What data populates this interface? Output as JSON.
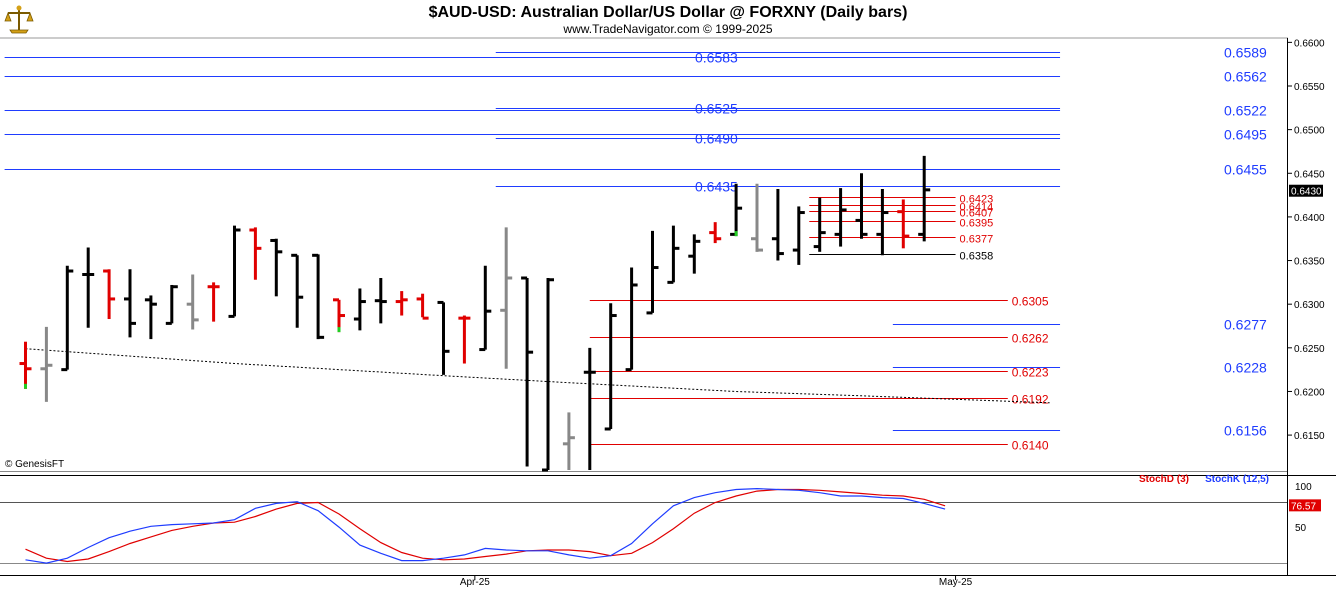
{
  "header": {
    "title": "$AUD-USD:  Australian Dollar/US Dollar @ FORXNY  (Daily bars)",
    "subtitle": "www.TradeNavigator.com © 1999-2025"
  },
  "credit": "© GenesisFT",
  "logo_icon": "scale-icon",
  "colors": {
    "bar_normal": "#000000",
    "bar_down": "#e00000",
    "bar_gray": "#888888",
    "level_blue": "#1f3cff",
    "level_red": "#e00000",
    "stoch_d": "#e00000",
    "stoch_k": "#1f3cff",
    "price_box": "#000000",
    "stoch_box": "#e00000"
  },
  "chart_data": [
    {
      "type": "ohlc",
      "title": "$AUD-USD:  Australian Dollar/US Dollar @ FORXNY  (Daily bars)",
      "ylim": [
        0.611,
        0.6605
      ],
      "y_ticks": [
        "0.6600",
        "0.6550",
        "0.6500",
        "0.6450",
        "0.6400",
        "0.6350",
        "0.6300",
        "0.6250",
        "0.6200",
        "0.6150"
      ],
      "y_tick_values": [
        0.66,
        0.655,
        0.65,
        0.645,
        0.64,
        0.635,
        0.63,
        0.625,
        0.62,
        0.615
      ],
      "x_ticks": [
        {
          "label": "Apr-25",
          "index": 21.5
        },
        {
          "label": "May-25",
          "index": 44.5
        }
      ],
      "last_price": 0.643,
      "last_price_label": "0.6430",
      "bars": [
        {
          "o": 0.6232,
          "h": 0.6257,
          "l": 0.6203,
          "c": 0.6226,
          "color": "red"
        },
        {
          "o": 0.6226,
          "h": 0.6274,
          "l": 0.6188,
          "c": 0.623,
          "color": "gray"
        },
        {
          "o": 0.6225,
          "h": 0.6344,
          "l": 0.6225,
          "c": 0.6338,
          "color": "black"
        },
        {
          "o": 0.6334,
          "h": 0.6365,
          "l": 0.6273,
          "c": 0.6334,
          "color": "black"
        },
        {
          "o": 0.6338,
          "h": 0.634,
          "l": 0.6283,
          "c": 0.6306,
          "color": "red"
        },
        {
          "o": 0.6306,
          "h": 0.634,
          "l": 0.6262,
          "c": 0.6278,
          "color": "black"
        },
        {
          "o": 0.6305,
          "h": 0.631,
          "l": 0.626,
          "c": 0.63,
          "color": "black"
        },
        {
          "o": 0.6278,
          "h": 0.6322,
          "l": 0.6278,
          "c": 0.632,
          "color": "black"
        },
        {
          "o": 0.63,
          "h": 0.6334,
          "l": 0.6271,
          "c": 0.6282,
          "color": "gray"
        },
        {
          "o": 0.632,
          "h": 0.6325,
          "l": 0.628,
          "c": 0.632,
          "color": "red"
        },
        {
          "o": 0.6286,
          "h": 0.639,
          "l": 0.6286,
          "c": 0.6385,
          "color": "black"
        },
        {
          "o": 0.6385,
          "h": 0.6388,
          "l": 0.6328,
          "c": 0.6364,
          "color": "red"
        },
        {
          "o": 0.6373,
          "h": 0.6375,
          "l": 0.6309,
          "c": 0.636,
          "color": "black"
        },
        {
          "o": 0.6356,
          "h": 0.6356,
          "l": 0.6273,
          "c": 0.6308,
          "color": "black"
        },
        {
          "o": 0.6356,
          "h": 0.6357,
          "l": 0.626,
          "c": 0.6262,
          "color": "black"
        },
        {
          "o": 0.6305,
          "h": 0.6305,
          "l": 0.6268,
          "c": 0.6287,
          "color": "red"
        },
        {
          "o": 0.6283,
          "h": 0.6318,
          "l": 0.627,
          "c": 0.6303,
          "color": "black"
        },
        {
          "o": 0.6304,
          "h": 0.633,
          "l": 0.6278,
          "c": 0.6303,
          "color": "black"
        },
        {
          "o": 0.6303,
          "h": 0.6315,
          "l": 0.6287,
          "c": 0.6305,
          "color": "red"
        },
        {
          "o": 0.6306,
          "h": 0.6312,
          "l": 0.6285,
          "c": 0.6284,
          "color": "red"
        },
        {
          "o": 0.6302,
          "h": 0.6302,
          "l": 0.6219,
          "c": 0.6246,
          "color": "black"
        },
        {
          "o": 0.6284,
          "h": 0.6287,
          "l": 0.6232,
          "c": 0.6284,
          "color": "red"
        },
        {
          "o": 0.6248,
          "h": 0.6344,
          "l": 0.6248,
          "c": 0.6292,
          "color": "black"
        },
        {
          "o": 0.6293,
          "h": 0.6388,
          "l": 0.6226,
          "c": 0.633,
          "color": "gray"
        },
        {
          "o": 0.633,
          "h": 0.633,
          "l": 0.6114,
          "c": 0.6245,
          "color": "black"
        },
        {
          "o": 0.611,
          "h": 0.633,
          "l": 0.611,
          "c": 0.6328,
          "color": "black"
        },
        {
          "o": 0.614,
          "h": 0.6176,
          "l": 0.611,
          "c": 0.6147,
          "color": "gray"
        },
        {
          "o": 0.6222,
          "h": 0.625,
          "l": 0.611,
          "c": 0.6222,
          "color": "black"
        },
        {
          "o": 0.6157,
          "h": 0.6301,
          "l": 0.6157,
          "c": 0.6287,
          "color": "black"
        },
        {
          "o": 0.6225,
          "h": 0.6342,
          "l": 0.6225,
          "c": 0.6322,
          "color": "black"
        },
        {
          "o": 0.629,
          "h": 0.6384,
          "l": 0.629,
          "c": 0.6342,
          "color": "black"
        },
        {
          "o": 0.6325,
          "h": 0.639,
          "l": 0.6325,
          "c": 0.6364,
          "color": "black"
        },
        {
          "o": 0.6355,
          "h": 0.638,
          "l": 0.6335,
          "c": 0.6372,
          "color": "black"
        },
        {
          "o": 0.6382,
          "h": 0.6394,
          "l": 0.637,
          "c": 0.6375,
          "color": "red"
        },
        {
          "o": 0.638,
          "h": 0.6438,
          "l": 0.6378,
          "c": 0.641,
          "color": "black"
        },
        {
          "o": 0.6375,
          "h": 0.6438,
          "l": 0.636,
          "c": 0.6362,
          "color": "gray"
        },
        {
          "o": 0.6375,
          "h": 0.6432,
          "l": 0.635,
          "c": 0.6358,
          "color": "black"
        },
        {
          "o": 0.6362,
          "h": 0.6412,
          "l": 0.6345,
          "c": 0.6405,
          "color": "black"
        },
        {
          "o": 0.6366,
          "h": 0.6422,
          "l": 0.636,
          "c": 0.6382,
          "color": "black"
        },
        {
          "o": 0.638,
          "h": 0.6433,
          "l": 0.6366,
          "c": 0.6408,
          "color": "black"
        },
        {
          "o": 0.6396,
          "h": 0.645,
          "l": 0.6375,
          "c": 0.638,
          "color": "black"
        },
        {
          "o": 0.638,
          "h": 0.6432,
          "l": 0.6356,
          "c": 0.6405,
          "color": "black"
        },
        {
          "o": 0.6406,
          "h": 0.642,
          "l": 0.6364,
          "c": 0.6378,
          "color": "red"
        },
        {
          "o": 0.638,
          "h": 0.647,
          "l": 0.6372,
          "c": 0.6431,
          "color": "black"
        }
      ],
      "moving_average": {
        "style": "dotted",
        "points": [
          [
            0,
            0.6249
          ],
          [
            10,
            0.6232
          ],
          [
            20,
            0.6218
          ],
          [
            26,
            0.621
          ],
          [
            34,
            0.62
          ],
          [
            40,
            0.6195
          ],
          [
            49,
            0.6187
          ]
        ]
      },
      "levels": [
        {
          "value": 0.6589,
          "label": "0.6589",
          "color": "blue",
          "from": 22.5,
          "to": 49.5,
          "label_pos": "right"
        },
        {
          "value": 0.6583,
          "label": "0.6583",
          "color": "blue",
          "from": -1,
          "to": 49.5,
          "label_pos": "left"
        },
        {
          "value": 0.6562,
          "label": "0.6562",
          "color": "blue",
          "from": -1,
          "to": 49.5,
          "label_pos": "right"
        },
        {
          "value": 0.6525,
          "label": "0.6525",
          "color": "blue",
          "from": 22.5,
          "to": 49.5,
          "label_pos": "left"
        },
        {
          "value": 0.6522,
          "label": "0.6522",
          "color": "blue",
          "from": -1,
          "to": 49.5,
          "label_pos": "right"
        },
        {
          "value": 0.6495,
          "label": "0.6495",
          "color": "blue",
          "from": -1,
          "to": 49.5,
          "label_pos": "right"
        },
        {
          "value": 0.649,
          "label": "0.6490",
          "color": "blue",
          "from": 22.5,
          "to": 49.5,
          "label_pos": "left"
        },
        {
          "value": 0.6455,
          "label": "0.6455",
          "color": "blue",
          "from": -1,
          "to": 49.5,
          "label_pos": "right"
        },
        {
          "value": 0.6435,
          "label": "0.6435",
          "color": "blue",
          "from": 22.5,
          "to": 49.5,
          "label_pos": "left"
        },
        {
          "value": 0.6423,
          "label": "0.6423",
          "color": "red",
          "from": 37.5,
          "to": 44.5,
          "label_pos": "end"
        },
        {
          "value": 0.6414,
          "label": "0.6414",
          "color": "red",
          "from": 37.5,
          "to": 44.5,
          "label_pos": "end"
        },
        {
          "value": 0.6407,
          "label": "0.6407",
          "color": "red",
          "from": 37.5,
          "to": 44.5,
          "label_pos": "end"
        },
        {
          "value": 0.6395,
          "label": "0.6395",
          "color": "red",
          "from": 37.5,
          "to": 44.5,
          "label_pos": "end"
        },
        {
          "value": 0.6377,
          "label": "0.6377",
          "color": "red",
          "from": 37.5,
          "to": 44.5,
          "label_pos": "end"
        },
        {
          "value": 0.6358,
          "label": "0.6358",
          "color": "black",
          "from": 37.5,
          "to": 44.5,
          "label_pos": "end"
        },
        {
          "value": 0.6305,
          "label": "0.6305",
          "color": "red",
          "from": 27,
          "to": 47,
          "label_pos": "end"
        },
        {
          "value": 0.6277,
          "label": "0.6277",
          "color": "blue",
          "from": 41.5,
          "to": 49.5,
          "label_pos": "right"
        },
        {
          "value": 0.6262,
          "label": "0.6262",
          "color": "red",
          "from": 27,
          "to": 47,
          "label_pos": "end"
        },
        {
          "value": 0.6228,
          "label": "0.6228",
          "color": "blue",
          "from": 41.5,
          "to": 49.5,
          "label_pos": "right"
        },
        {
          "value": 0.6223,
          "label": "0.6223",
          "color": "red",
          "from": 27,
          "to": 47,
          "label_pos": "end"
        },
        {
          "value": 0.6192,
          "label": "0.6192",
          "color": "red",
          "from": 27,
          "to": 47,
          "label_pos": "end"
        },
        {
          "value": 0.6156,
          "label": "0.6156",
          "color": "blue",
          "from": 41.5,
          "to": 49.5,
          "label_pos": "right"
        },
        {
          "value": 0.614,
          "label": "0.6140",
          "color": "red",
          "from": 27,
          "to": 47,
          "label_pos": "end"
        }
      ]
    },
    {
      "type": "line",
      "title": "",
      "ylim": [
        0,
        110
      ],
      "y_ticks": [
        "100",
        "50"
      ],
      "y_tick_values": [
        100,
        50
      ],
      "reference_line": 80,
      "last_value": 76.57,
      "last_value_label": "76.57",
      "series": [
        {
          "name": "StochD (3)",
          "color": "red",
          "values": [
            23,
            12,
            8,
            11,
            20,
            30,
            38,
            46,
            51,
            55,
            56,
            63,
            72,
            79,
            80,
            66,
            48,
            31,
            19,
            12,
            10,
            11,
            14,
            17,
            21,
            22,
            22,
            20,
            15,
            18,
            31,
            48,
            67,
            80,
            88,
            94,
            96,
            96,
            95,
            93,
            91,
            89,
            88,
            84,
            76
          ]
        },
        {
          "name": "StochK (12,5)",
          "color": "blue",
          "values": [
            10,
            6,
            12,
            25,
            37,
            45,
            51,
            53,
            54,
            55,
            59,
            73,
            79,
            81,
            70,
            50,
            28,
            18,
            9,
            9,
            12,
            16,
            24,
            22,
            21,
            21,
            16,
            12,
            15,
            30,
            54,
            76,
            86,
            92,
            96,
            97,
            96,
            95,
            92,
            88,
            88,
            86,
            85,
            79,
            72
          ]
        }
      ]
    }
  ]
}
